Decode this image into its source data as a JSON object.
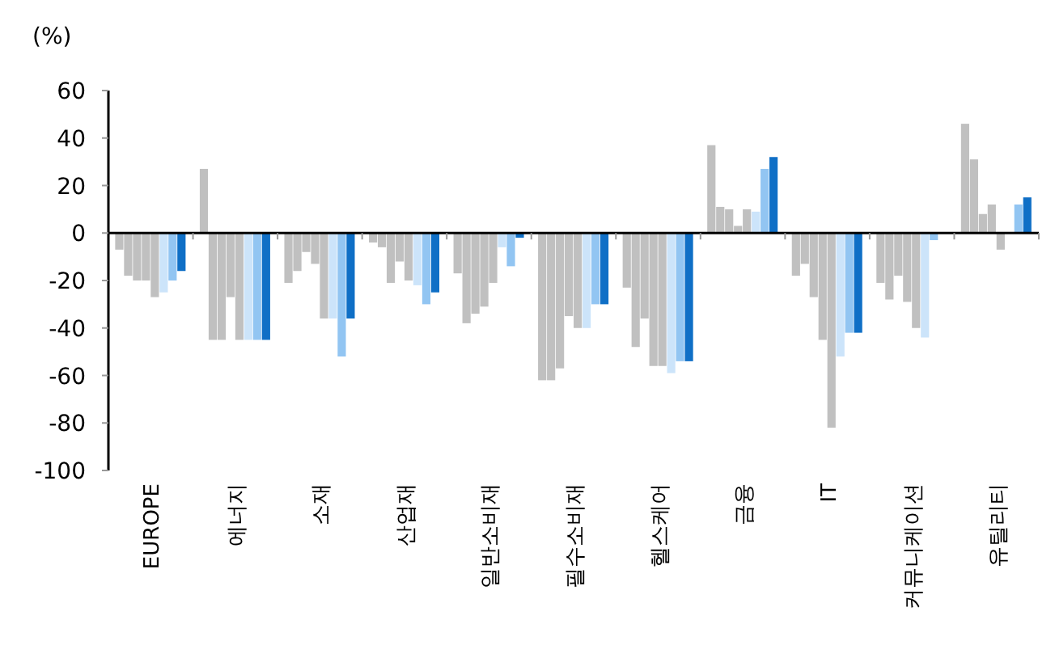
{
  "chart_data": {
    "type": "bar",
    "ylabel": "(%)",
    "categories": [
      "EUROPE",
      "에너지",
      "소재",
      "산업재",
      "일반소비재",
      "필수소비재",
      "헬스케어",
      "금융",
      "IT",
      "커뮤니케이션",
      "유틸리티"
    ],
    "series": [
      {
        "color": "#c0c0c0",
        "values": [
          -7,
          27,
          -21,
          -4,
          -17,
          -62,
          -23,
          37,
          -18,
          -21,
          46
        ]
      },
      {
        "color": "#c0c0c0",
        "values": [
          -18,
          -45,
          -16,
          -6,
          -38,
          -62,
          -48,
          11,
          -13,
          -28,
          31
        ]
      },
      {
        "color": "#c0c0c0",
        "values": [
          -20,
          -45,
          -8,
          -21,
          -34,
          -57,
          -36,
          10,
          -27,
          -18,
          8
        ]
      },
      {
        "color": "#c0c0c0",
        "values": [
          -20,
          -27,
          -13,
          -12,
          -31,
          -35,
          -56,
          3,
          -45,
          -29,
          12
        ]
      },
      {
        "color": "#c0c0c0",
        "values": [
          -27,
          -45,
          -36,
          -20,
          -21,
          -40,
          -56,
          10,
          -82,
          -40,
          -7
        ]
      },
      {
        "color": "#cce4fa",
        "values": [
          -25,
          -45,
          -36,
          -22,
          -6,
          -40,
          -59,
          9,
          -52,
          -44,
          null
        ]
      },
      {
        "color": "#92c5f2",
        "values": [
          -20,
          -45,
          -52,
          -30,
          -14,
          -30,
          -54,
          27,
          -42,
          -3,
          12
        ]
      },
      {
        "color": "#0f6fc6",
        "values": [
          -16,
          -45,
          -36,
          -25,
          -2,
          -30,
          -54,
          32,
          -42,
          null,
          15
        ]
      }
    ],
    "ylim": [
      -100,
      60
    ],
    "yticks": [
      -100,
      -80,
      -60,
      -40,
      -20,
      0,
      20,
      40,
      60
    ]
  }
}
